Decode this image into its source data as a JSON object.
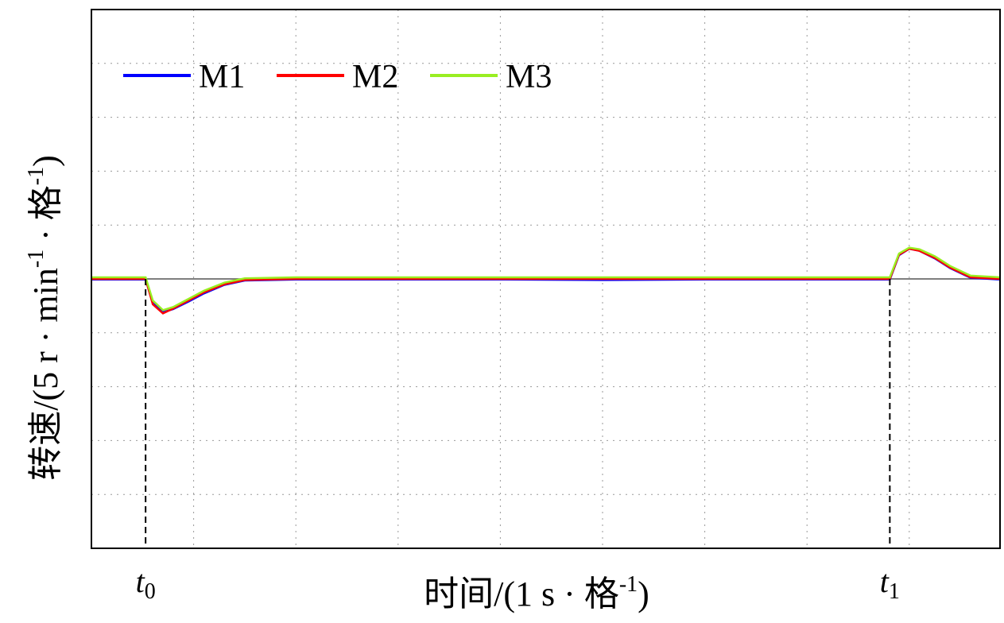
{
  "chart_data": {
    "type": "line",
    "x": [
      0,
      0.53,
      0.6,
      0.7,
      0.8,
      0.95,
      1.1,
      1.3,
      1.5,
      2,
      3,
      4,
      5,
      6,
      7,
      7.81,
      7.9,
      8.0,
      8.1,
      8.25,
      8.4,
      8.6,
      8.89
    ],
    "series": [
      {
        "name": "M1",
        "color": "#0000ff",
        "values": [
          -0.01,
          -0.01,
          -0.45,
          -0.62,
          -0.56,
          -0.42,
          -0.27,
          -0.11,
          -0.03,
          -0.01,
          -0.01,
          -0.01,
          -0.02,
          -0.01,
          -0.01,
          -0.01,
          0.44,
          0.56,
          0.52,
          0.38,
          0.2,
          0.02,
          -0.01
        ]
      },
      {
        "name": "M2",
        "color": "#ff0000",
        "values": [
          0,
          0,
          -0.47,
          -0.64,
          -0.55,
          -0.4,
          -0.25,
          -0.1,
          -0.02,
          0,
          0,
          0,
          0,
          0,
          0,
          0,
          0.45,
          0.56,
          0.52,
          0.39,
          0.21,
          0.03,
          0
        ]
      },
      {
        "name": "M3",
        "color": "#99ee22",
        "values": [
          0.03,
          0.03,
          -0.4,
          -0.58,
          -0.52,
          -0.37,
          -0.22,
          -0.07,
          0.01,
          0.03,
          0.03,
          0.03,
          0.03,
          0.03,
          0.03,
          0.03,
          0.47,
          0.58,
          0.55,
          0.42,
          0.24,
          0.06,
          0.03
        ]
      }
    ],
    "xlim": [
      0,
      8.89
    ],
    "ylim": [
      -5,
      5
    ],
    "xticks": [
      1,
      2,
      3,
      4,
      5,
      6,
      7,
      8
    ],
    "yticks": [
      -4,
      -3,
      -2,
      -1,
      0,
      1,
      2,
      3,
      4
    ],
    "grid": true,
    "legend": "upper left",
    "xlabel": [
      "时间/(1 s · 格",
      "-1",
      ")"
    ],
    "ylabel": [
      "转速/(5 r · min",
      "-1",
      " · 格",
      "-1",
      ")"
    ],
    "annotations": [
      {
        "text": "t",
        "sub": "0",
        "x": 0.53
      },
      {
        "text": "t",
        "sub": "1",
        "x": 7.81
      }
    ]
  }
}
